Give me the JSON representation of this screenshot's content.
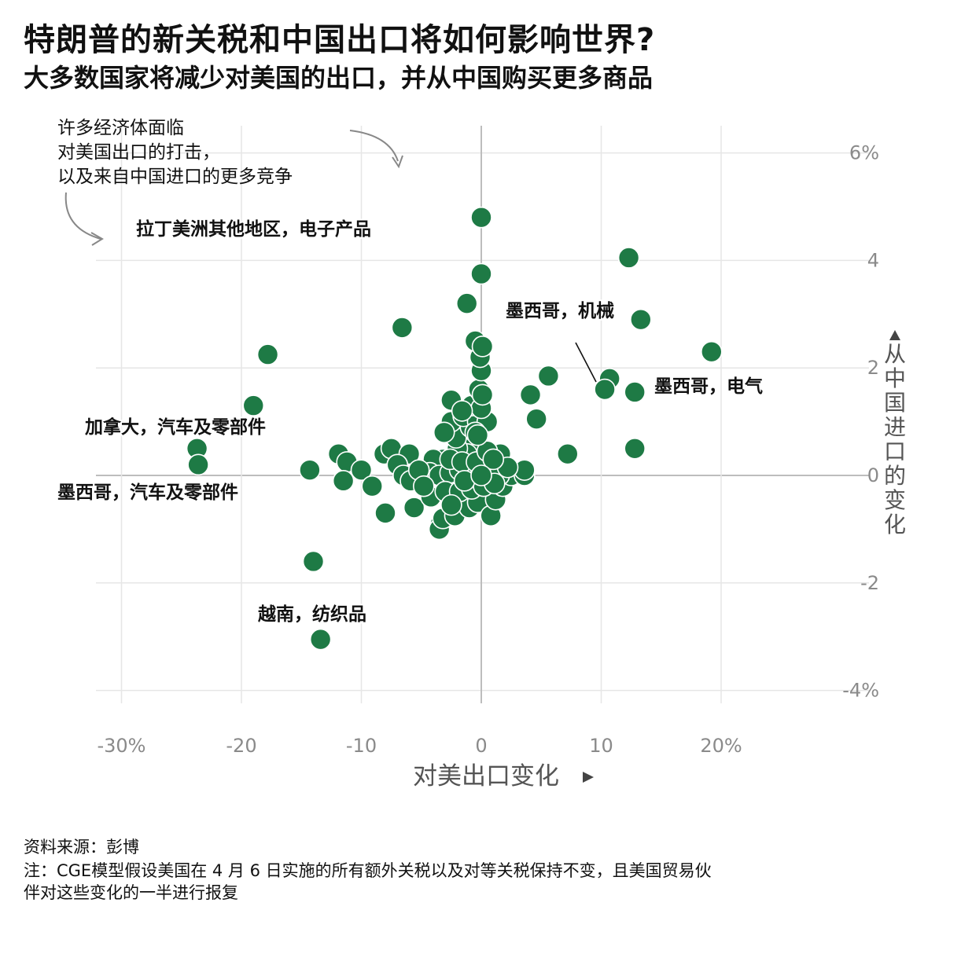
{
  "title": "特朗普的新关税和中国出口将如何影响世界?",
  "subtitle": "大多数国家将减少对美国的出口，并从中国购买更多商品",
  "colors": {
    "point": "#1e7a45",
    "point_stroke": "#ffffff",
    "grid": "#e6e6e6",
    "axis_zero": "#bdbdbd",
    "tick": "#8a8a8a"
  },
  "chart_data": {
    "type": "scatter",
    "xlabel": "对美出口变化",
    "ylabel": "从中国进口的变化",
    "xlim": [
      -32,
      33
    ],
    "ylim": [
      -4.5,
      6.5
    ],
    "x_ticks": [
      -30,
      -20,
      -10,
      0,
      10,
      20
    ],
    "x_tick_labels": [
      "-30%",
      "-20",
      "-10",
      "0",
      "10",
      "20%"
    ],
    "y_ticks": [
      -4,
      -2,
      0,
      2,
      4,
      6
    ],
    "y_tick_labels": [
      "-4%",
      "-2",
      "0",
      "2",
      "4",
      "6%"
    ],
    "grid": true,
    "points": [
      {
        "x": 0,
        "y": 4.8
      },
      {
        "x": 0,
        "y": 3.75
      },
      {
        "x": 12.3,
        "y": 4.05
      },
      {
        "x": 13.3,
        "y": 2.9
      },
      {
        "x": 19.2,
        "y": 2.3
      },
      {
        "x": 10.7,
        "y": 1.8
      },
      {
        "x": 10.3,
        "y": 1.6
      },
      {
        "x": 12.8,
        "y": 1.55
      },
      {
        "x": 12.8,
        "y": 0.5
      },
      {
        "x": 7.2,
        "y": 0.4
      },
      {
        "x": 5.6,
        "y": 1.85
      },
      {
        "x": 4.1,
        "y": 1.5
      },
      {
        "x": 4.6,
        "y": 1.05
      },
      {
        "x": -1.2,
        "y": 3.2
      },
      {
        "x": -6.6,
        "y": 2.75
      },
      {
        "x": -17.8,
        "y": 2.25
      },
      {
        "x": -19.0,
        "y": 1.3
      },
      {
        "x": -23.7,
        "y": 0.5
      },
      {
        "x": -23.6,
        "y": 0.2
      },
      {
        "x": -14.3,
        "y": 0.1
      },
      {
        "x": -14.0,
        "y": -1.6
      },
      {
        "x": -13.4,
        "y": -3.05
      },
      {
        "x": -11.9,
        "y": 0.4
      },
      {
        "x": -11.2,
        "y": 0.25
      },
      {
        "x": -11.5,
        "y": -0.1
      },
      {
        "x": -10.0,
        "y": 0.1
      },
      {
        "x": -9.1,
        "y": -0.2
      },
      {
        "x": -8.0,
        "y": -0.7
      },
      {
        "x": -8.1,
        "y": 0.4
      },
      {
        "x": -7.5,
        "y": 0.5
      },
      {
        "x": -6.0,
        "y": 0.4
      },
      {
        "x": -7.0,
        "y": 0.2
      },
      {
        "x": -6.5,
        "y": 0.0
      },
      {
        "x": -5.9,
        "y": -0.1
      },
      {
        "x": -5.6,
        "y": -0.6
      },
      {
        "x": -4.2,
        "y": -0.4
      },
      {
        "x": -3.4,
        "y": -0.9
      },
      {
        "x": -3.5,
        "y": -1.0
      },
      {
        "x": -3.2,
        "y": -0.8
      },
      {
        "x": -2.2,
        "y": -0.75
      },
      {
        "x": -1.0,
        "y": -0.6
      },
      {
        "x": -0.3,
        "y": -0.5
      },
      {
        "x": 0.8,
        "y": -0.75
      },
      {
        "x": 1.2,
        "y": -0.45
      },
      {
        "x": 1.8,
        "y": -0.2
      },
      {
        "x": 2.5,
        "y": 0.0
      },
      {
        "x": 3.6,
        "y": 0.0
      },
      {
        "x": 3.6,
        "y": 0.1
      },
      {
        "x": 1.6,
        "y": 0.4
      },
      {
        "x": 0.6,
        "y": 0.3
      },
      {
        "x": -0.5,
        "y": 0.6
      },
      {
        "x": -1.2,
        "y": 0.4
      },
      {
        "x": -2.0,
        "y": 0.5
      },
      {
        "x": -3.2,
        "y": 0.3
      },
      {
        "x": -4.0,
        "y": 0.3
      },
      {
        "x": -4.3,
        "y": 0.05
      },
      {
        "x": -3.5,
        "y": 0.0
      },
      {
        "x": -2.6,
        "y": 0.05
      },
      {
        "x": -1.8,
        "y": 0.1
      },
      {
        "x": -0.9,
        "y": 0.1
      },
      {
        "x": 0.0,
        "y": 0.05
      },
      {
        "x": 0.8,
        "y": 0.1
      },
      {
        "x": 1.5,
        "y": 0.0
      },
      {
        "x": 2.2,
        "y": 0.15
      },
      {
        "x": -2.6,
        "y": 0.3
      },
      {
        "x": -1.6,
        "y": 0.25
      },
      {
        "x": -0.4,
        "y": 0.25
      },
      {
        "x": 0.5,
        "y": 0.45
      },
      {
        "x": 1.0,
        "y": 0.3
      },
      {
        "x": -3.0,
        "y": -0.3
      },
      {
        "x": -1.8,
        "y": -0.3
      },
      {
        "x": -0.8,
        "y": -0.25
      },
      {
        "x": 0.2,
        "y": -0.2
      },
      {
        "x": 1.1,
        "y": -0.15
      },
      {
        "x": -5.2,
        "y": 0.1
      },
      {
        "x": -4.8,
        "y": -0.2
      },
      {
        "x": -2.5,
        "y": -0.55
      },
      {
        "x": -1.4,
        "y": -0.1
      },
      {
        "x": 0.0,
        "y": 0.0
      },
      {
        "x": -2.1,
        "y": 0.7
      },
      {
        "x": -0.9,
        "y": 0.9
      },
      {
        "x": -2.5,
        "y": 1.0
      },
      {
        "x": -1.5,
        "y": 1.1
      },
      {
        "x": -0.3,
        "y": 1.0
      },
      {
        "x": 0.5,
        "y": 1.0
      },
      {
        "x": -0.8,
        "y": 1.3
      },
      {
        "x": 0.0,
        "y": 1.25
      },
      {
        "x": -2.5,
        "y": 1.4
      },
      {
        "x": -1.6,
        "y": 1.2
      },
      {
        "x": -0.5,
        "y": 0.8
      },
      {
        "x": -3.1,
        "y": 0.8
      },
      {
        "x": -0.2,
        "y": 1.6
      },
      {
        "x": 0.0,
        "y": 1.95
      },
      {
        "x": -0.1,
        "y": 2.2
      },
      {
        "x": -0.5,
        "y": 2.5
      },
      {
        "x": 0.1,
        "y": 2.4
      },
      {
        "x": 0.1,
        "y": 1.5
      },
      {
        "x": -0.3,
        "y": 0.75
      }
    ],
    "labels": [
      {
        "text": "拉丁美洲其他地区，电子产品"
      },
      {
        "text": "墨西哥，机械"
      },
      {
        "text": "墨西哥，电气"
      },
      {
        "text": "加拿大，汽车及零部件"
      },
      {
        "text": "墨西哥，汽车及零部件"
      },
      {
        "text": "越南，纺织品"
      }
    ],
    "annotation": [
      "许多经济体面临",
      "对美国出口的打击，",
      "以及来自中国进口的更多竞争"
    ]
  },
  "footer": {
    "source": "资料来源：彭博",
    "note_line1": "注：CGE模型假设美国在 4 月 6 日实施的所有额外关税以及对等关税保持不变，且美国贸易伙",
    "note_line2": "伴对这些变化的一半进行报复"
  }
}
